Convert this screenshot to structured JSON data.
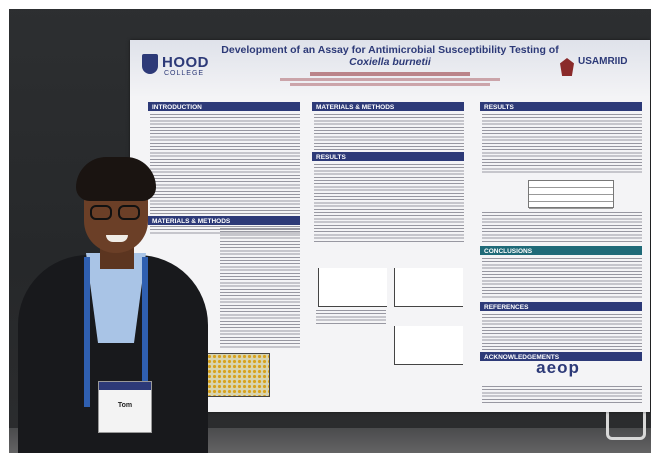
{
  "poster": {
    "title_line1": "Development of an Assay for Antimicrobial Susceptibility Testing of",
    "title_line2": "Coxiella burnetii",
    "logo_left_line1": "HOOD",
    "logo_left_line2": "COLLEGE",
    "logo_right": "USAMRIID",
    "sections": {
      "introduction": "INTRODUCTION",
      "materials_methods_top": "MATERIALS & METHODS",
      "materials_methods_left": "MATERIALS & METHODS",
      "results_middle": "RESULTS",
      "results_right": "RESULTS",
      "conclusions": "CONCLUSIONS",
      "references": "REFERENCES",
      "acknowledgements": "ACKNOWLEDGEMENTS"
    },
    "sponsor_logo": "aeop"
  },
  "badge": {
    "text": "Tom"
  }
}
